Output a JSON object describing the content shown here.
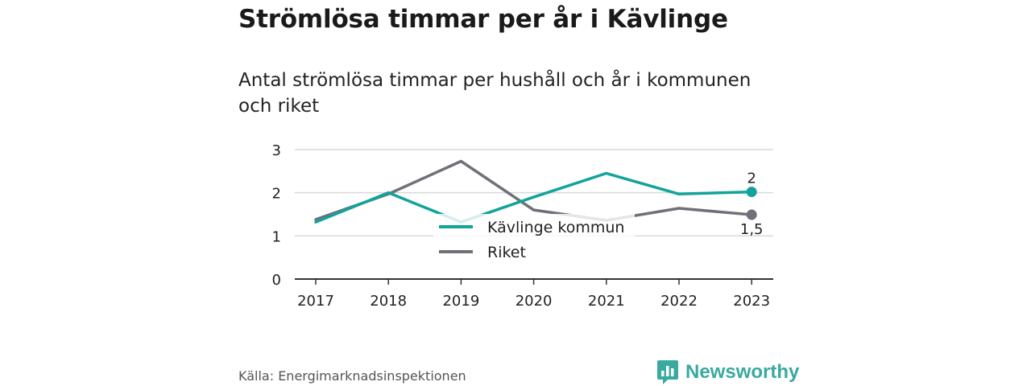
{
  "title": "Strömlösa timmar per år i Kävlinge",
  "subtitle": "Antal strömlösa timmar per hushåll och år i kommunen och riket",
  "source": "Källa: Energimarknadsinspektionen",
  "brand": "Newsworthy",
  "colors": {
    "kavlinge": "#12a39a",
    "riket": "#707079",
    "brand": "#3aa99f"
  },
  "chart_data": {
    "type": "line",
    "title": "",
    "xlabel": "",
    "ylabel": "",
    "x": [
      "2017",
      "2018",
      "2019",
      "2020",
      "2021",
      "2022",
      "2023"
    ],
    "yticks": [
      "0",
      "1",
      "2",
      "3"
    ],
    "ylim": [
      0,
      3
    ],
    "grid": true,
    "legend_position": "bottom-center",
    "series": [
      {
        "name": "Kävlinge kommun",
        "values": [
          1.32,
          2.0,
          1.32,
          1.9,
          2.45,
          1.97,
          2.02
        ],
        "end_label": "2"
      },
      {
        "name": "Riket",
        "values": [
          1.38,
          1.97,
          2.73,
          1.6,
          1.36,
          1.64,
          1.49
        ],
        "end_label": "1,5"
      }
    ]
  }
}
